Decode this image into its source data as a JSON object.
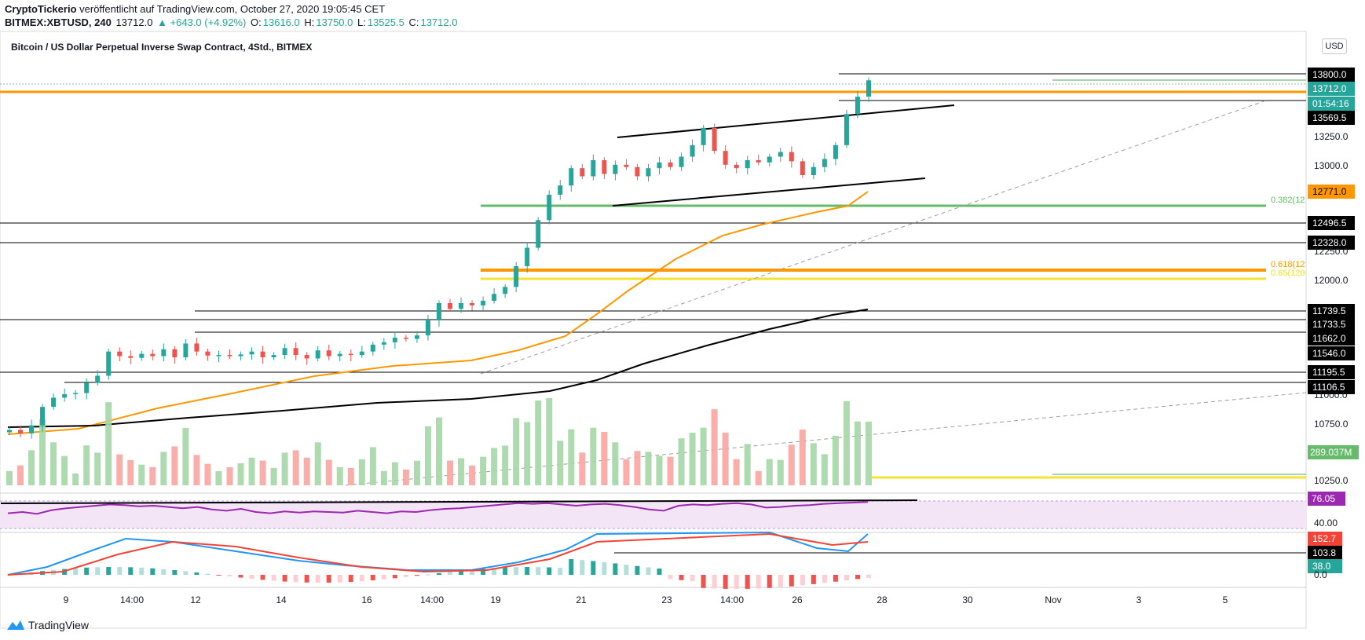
{
  "header": {
    "author": "CryptoTickerio",
    "published": "veröffentlicht auf TradingView.com, October 27, 2020 19:05:45 CET",
    "symbol": "BITMEX:XBTUSD, 240",
    "last": "13712.0",
    "change": "▲ +643.0 (+4.92%)",
    "o_label": "O:",
    "o_val": "13616.0",
    "h_label": "H:",
    "h_val": "13750.0",
    "l_label": "L:",
    "l_val": "13525.5",
    "c_label": "C:",
    "c_val": "13712.0"
  },
  "instrument_title": "Bitcoin / US Dollar Perpetual Inverse Swap Contract, 4Std., BITMEX",
  "currency_button": "USD",
  "footer": {
    "brand": "TradingView"
  },
  "colors": {
    "up": "#26a69a",
    "down": "#ef5350",
    "orange": "#ff9800",
    "fib_green": "#66bb6a",
    "yellow": "#f4e130",
    "rsi": "#9c27b0",
    "macd": "#2196f3",
    "signal": "#f44336"
  },
  "chart_data": [
    {
      "type": "candlestick",
      "title": "Bitcoin / US Dollar Perpetual Inverse Swap Contract, 4Std., BITMEX",
      "x_tick_labels": [
        "9",
        "14:00",
        "12",
        "14",
        "16",
        "14:00",
        "19",
        "21",
        "23",
        "14:00",
        "26",
        "28",
        "30",
        "Nov",
        "3",
        "5"
      ],
      "y_tick_labels": [
        "13250.0",
        "13000.0",
        "12250.0",
        "12000.0",
        "11000.0",
        "10750.0",
        "10250.0"
      ],
      "ylim": [
        10200,
        14000
      ],
      "series": [
        {
          "name": "price path (close)",
          "values": [
            10680,
            10650,
            10720,
            10880,
            10960,
            10990,
            11000,
            11090,
            11150,
            11360,
            11320,
            11305,
            11340,
            11320,
            11380,
            11310,
            11430,
            11360,
            11325,
            11330,
            11320,
            11335,
            11360,
            11310,
            11330,
            11390,
            11330,
            11300,
            11370,
            11320,
            11340,
            11330,
            11360,
            11420,
            11440,
            11480,
            11470,
            11500,
            11630,
            11780,
            11730,
            11780,
            11760,
            11800,
            11860,
            11920,
            12100,
            12260,
            12500,
            12720,
            12800,
            12950,
            12880,
            13020,
            12900,
            12980,
            12960,
            12880,
            12950,
            13000,
            12960,
            13050,
            13150,
            13300,
            13100,
            12980,
            12950,
            13020,
            13000,
            13050,
            13090,
            13010,
            12890,
            12960,
            13030,
            13150,
            13420,
            13570,
            13712
          ]
        }
      ],
      "volume_label": "289.037M"
    },
    {
      "type": "line",
      "name": "RSI",
      "values": [
        58,
        60,
        57,
        63,
        66,
        68,
        70,
        72,
        71,
        69,
        70,
        68,
        66,
        68,
        64,
        62,
        65,
        60,
        58,
        61,
        59,
        61,
        60,
        59,
        62,
        60,
        58,
        61,
        60,
        63,
        65,
        66,
        68,
        70,
        72,
        74,
        73,
        74,
        72,
        70,
        72,
        73,
        71,
        68,
        64,
        62,
        70,
        72,
        71,
        73,
        74,
        72,
        67,
        68,
        70,
        71,
        73,
        74,
        75,
        76.05
      ],
      "current_label": "76.05",
      "y_tick_labels": [
        "40.00"
      ]
    },
    {
      "type": "line",
      "name": "MACD",
      "series_labels": [
        "152.7",
        "103.8",
        "38.0"
      ],
      "y_tick_labels": [
        "0.0"
      ]
    }
  ],
  "price_labels": {
    "p13800": "13800.0",
    "p13712": "13712.0",
    "countdown": "01:54:16",
    "p13569": "13569.5",
    "p12771": "12771.0",
    "p12496": "12496.5",
    "p12328": "12328.0",
    "p11739": "11739.5",
    "p11733": "11733.5",
    "p11662": "11662.0",
    "p11546": "11546.0",
    "p11195": "11195.5",
    "p11106": "11106.5"
  },
  "fib_labels": {
    "f0382": "0.382(12",
    "f0618": "0.618(12",
    "f065": "0.65(120"
  }
}
